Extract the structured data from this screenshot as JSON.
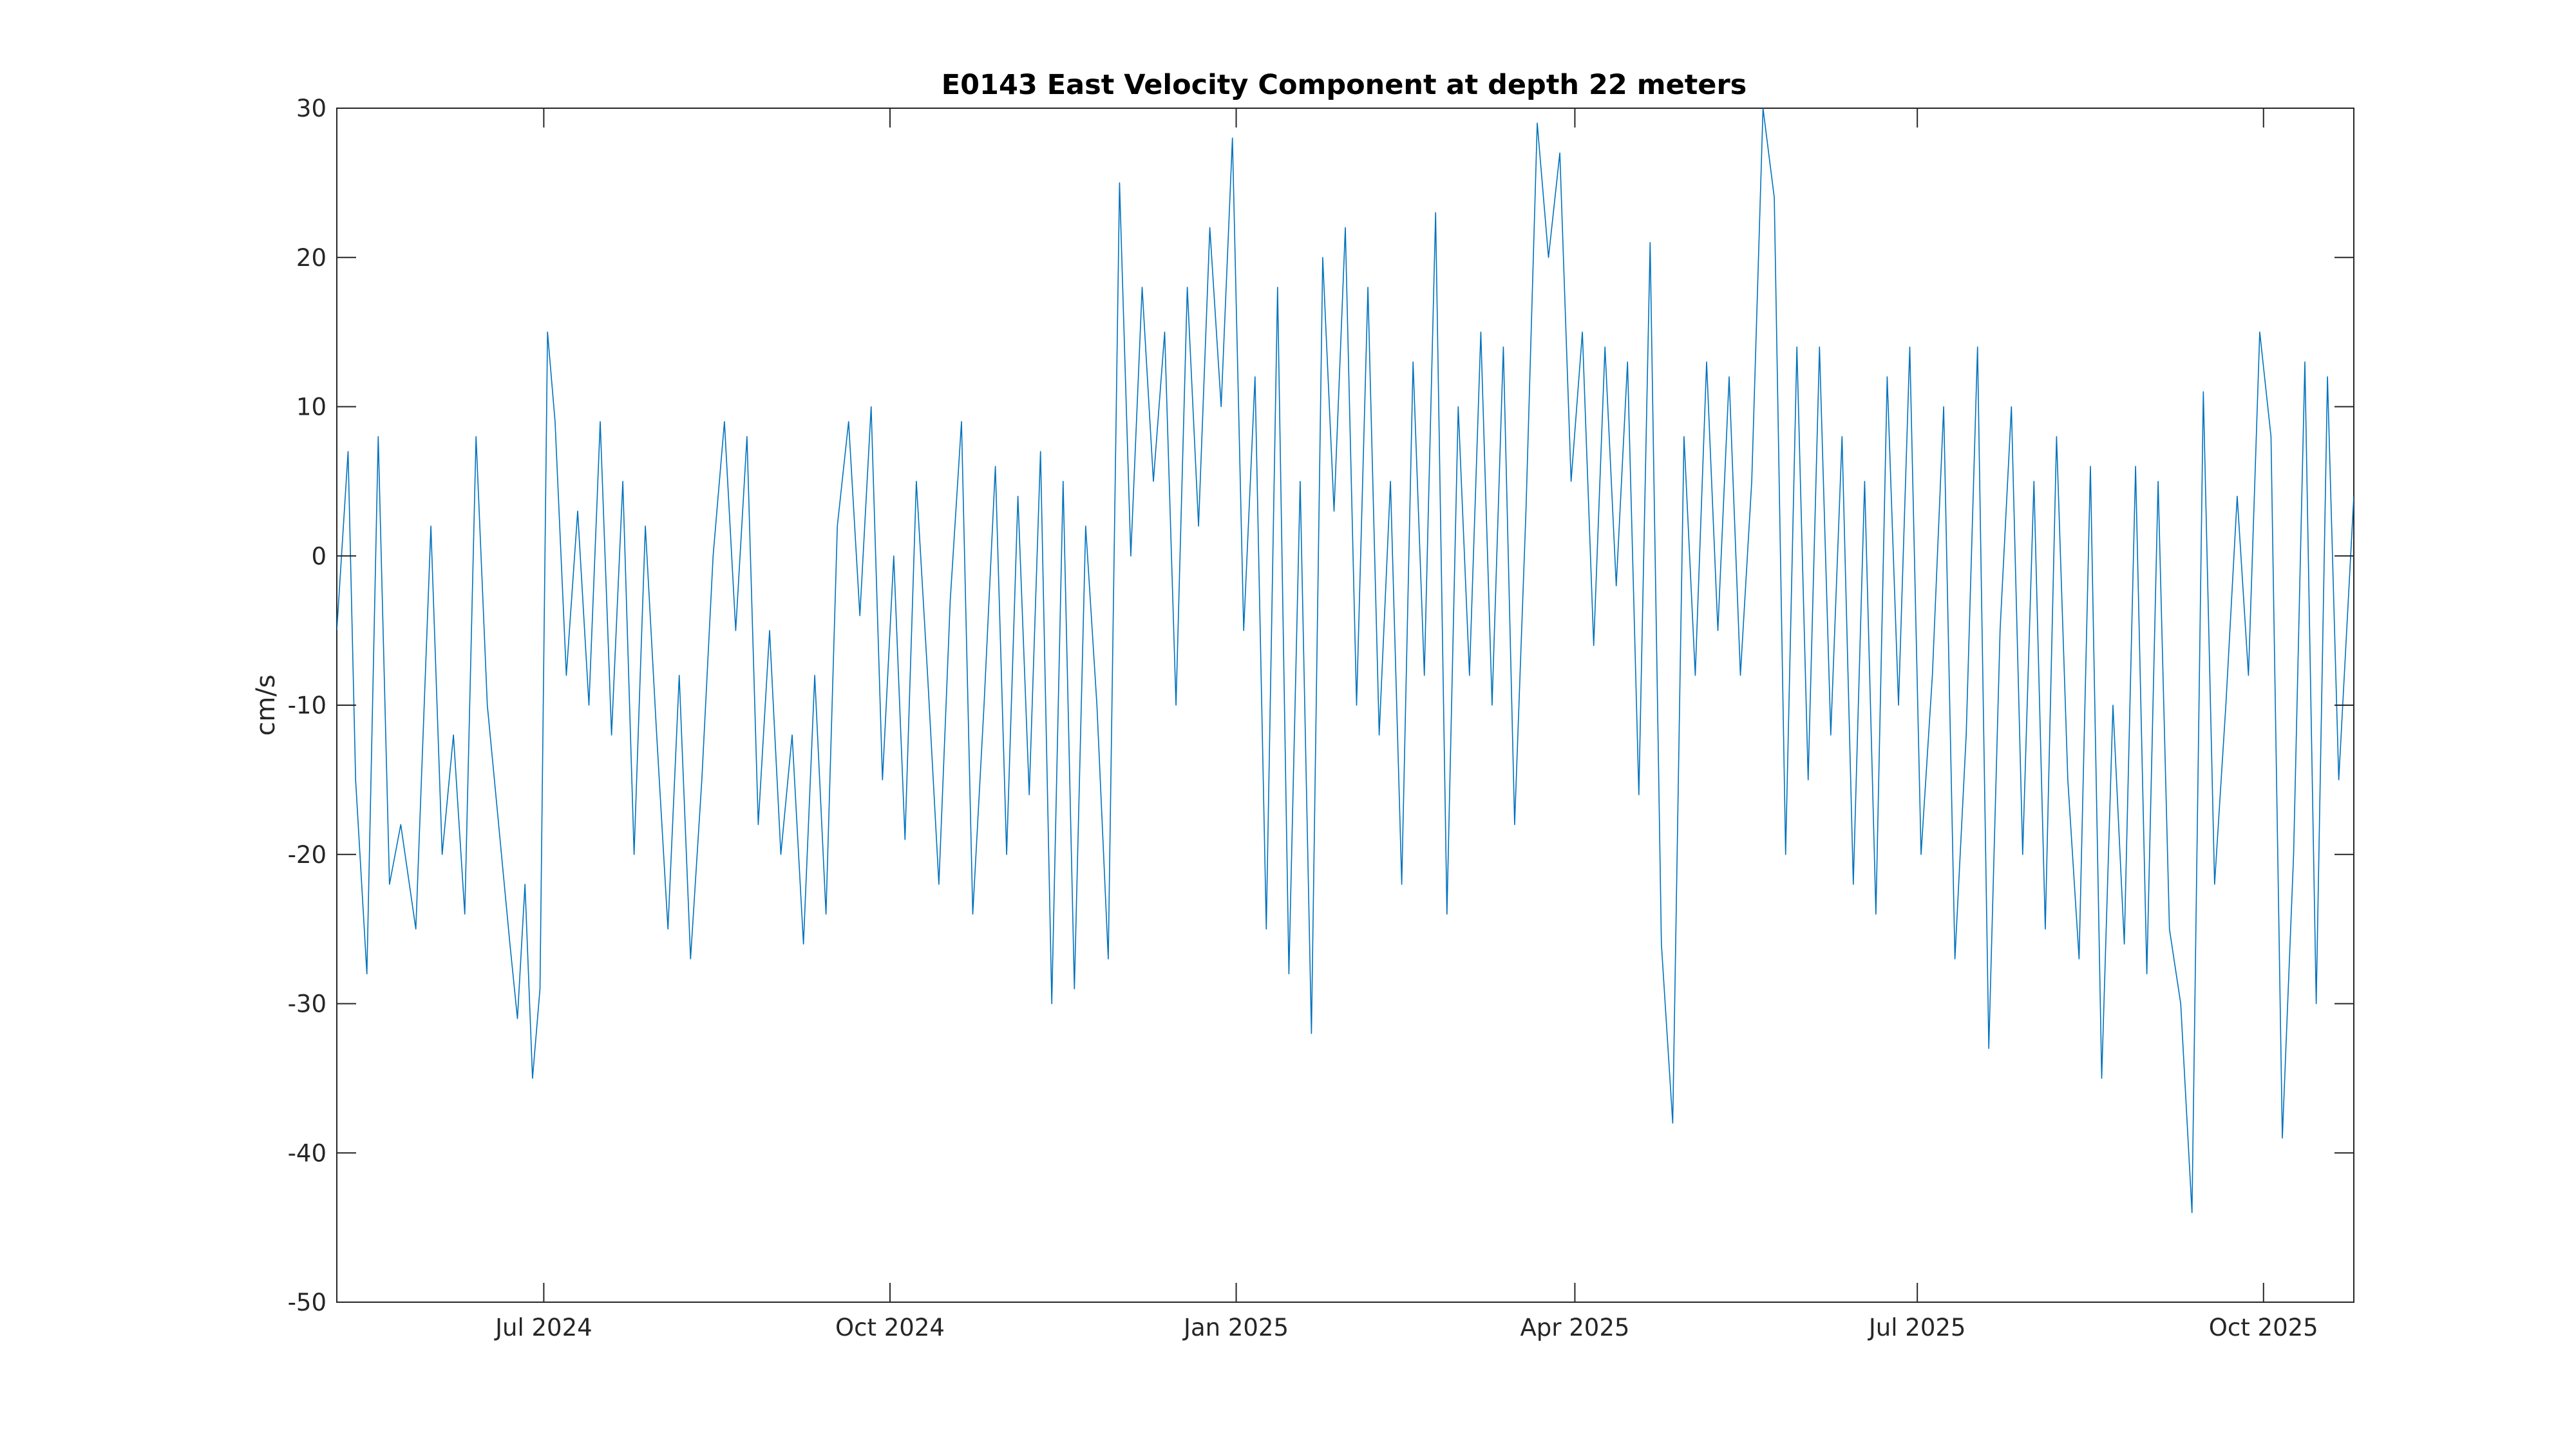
{
  "chart_data": {
    "type": "line",
    "title": "E0143 East Velocity Component at depth 22 meters",
    "xlabel": "",
    "ylabel": "cm/s",
    "xlim": [
      "2024-05-07",
      "2025-10-25"
    ],
    "ylim": [
      -50,
      30
    ],
    "yticks": [
      30,
      20,
      10,
      0,
      -10,
      -20,
      -30,
      -40,
      -50
    ],
    "xticks": [
      {
        "date": "2024-07-01",
        "label": "Jul 2024"
      },
      {
        "date": "2024-10-01",
        "label": "Oct 2024"
      },
      {
        "date": "2025-01-01",
        "label": "Jan 2025"
      },
      {
        "date": "2025-04-01",
        "label": "Apr 2025"
      },
      {
        "date": "2025-07-01",
        "label": "Jul 2025"
      },
      {
        "date": "2025-10-01",
        "label": "Oct 2025"
      }
    ],
    "grid": false,
    "legend": "none",
    "series": [
      {
        "color": "#0072bd",
        "points": [
          [
            "2024-05-07",
            -5
          ],
          [
            "2024-05-10",
            7
          ],
          [
            "2024-05-12",
            -15
          ],
          [
            "2024-05-15",
            -28
          ],
          [
            "2024-05-18",
            8
          ],
          [
            "2024-05-21",
            -22
          ],
          [
            "2024-05-24",
            -18
          ],
          [
            "2024-05-28",
            -25
          ],
          [
            "2024-06-01",
            2
          ],
          [
            "2024-06-04",
            -20
          ],
          [
            "2024-06-07",
            -12
          ],
          [
            "2024-06-10",
            -24
          ],
          [
            "2024-06-13",
            8
          ],
          [
            "2024-06-16",
            -10
          ],
          [
            "2024-06-19",
            -18
          ],
          [
            "2024-06-22",
            -26
          ],
          [
            "2024-06-24",
            -31
          ],
          [
            "2024-06-26",
            -22
          ],
          [
            "2024-06-28",
            -35
          ],
          [
            "2024-06-30",
            -29
          ],
          [
            "2024-07-02",
            15
          ],
          [
            "2024-07-04",
            9
          ],
          [
            "2024-07-07",
            -8
          ],
          [
            "2024-07-10",
            3
          ],
          [
            "2024-07-13",
            -10
          ],
          [
            "2024-07-16",
            9
          ],
          [
            "2024-07-19",
            -12
          ],
          [
            "2024-07-22",
            5
          ],
          [
            "2024-07-25",
            -20
          ],
          [
            "2024-07-28",
            2
          ],
          [
            "2024-07-31",
            -12
          ],
          [
            "2024-08-03",
            -25
          ],
          [
            "2024-08-06",
            -8
          ],
          [
            "2024-08-09",
            -27
          ],
          [
            "2024-08-12",
            -15
          ],
          [
            "2024-08-15",
            0
          ],
          [
            "2024-08-18",
            9
          ],
          [
            "2024-08-21",
            -5
          ],
          [
            "2024-08-24",
            8
          ],
          [
            "2024-08-27",
            -18
          ],
          [
            "2024-08-30",
            -5
          ],
          [
            "2024-09-02",
            -20
          ],
          [
            "2024-09-05",
            -12
          ],
          [
            "2024-09-08",
            -26
          ],
          [
            "2024-09-11",
            -8
          ],
          [
            "2024-09-14",
            -24
          ],
          [
            "2024-09-17",
            2
          ],
          [
            "2024-09-20",
            9
          ],
          [
            "2024-09-23",
            -4
          ],
          [
            "2024-09-26",
            10
          ],
          [
            "2024-09-29",
            -15
          ],
          [
            "2024-10-02",
            0
          ],
          [
            "2024-10-05",
            -19
          ],
          [
            "2024-10-08",
            5
          ],
          [
            "2024-10-11",
            -8
          ],
          [
            "2024-10-14",
            -22
          ],
          [
            "2024-10-17",
            -3
          ],
          [
            "2024-10-20",
            9
          ],
          [
            "2024-10-23",
            -24
          ],
          [
            "2024-10-26",
            -10
          ],
          [
            "2024-10-29",
            6
          ],
          [
            "2024-11-01",
            -20
          ],
          [
            "2024-11-04",
            4
          ],
          [
            "2024-11-07",
            -16
          ],
          [
            "2024-11-10",
            7
          ],
          [
            "2024-11-13",
            -30
          ],
          [
            "2024-11-16",
            5
          ],
          [
            "2024-11-19",
            -29
          ],
          [
            "2024-11-22",
            2
          ],
          [
            "2024-11-25",
            -10
          ],
          [
            "2024-11-28",
            -27
          ],
          [
            "2024-12-01",
            25
          ],
          [
            "2024-12-04",
            0
          ],
          [
            "2024-12-07",
            18
          ],
          [
            "2024-12-10",
            5
          ],
          [
            "2024-12-13",
            15
          ],
          [
            "2024-12-16",
            -10
          ],
          [
            "2024-12-19",
            18
          ],
          [
            "2024-12-22",
            2
          ],
          [
            "2024-12-25",
            22
          ],
          [
            "2024-12-28",
            10
          ],
          [
            "2024-12-31",
            28
          ],
          [
            "2025-01-03",
            -5
          ],
          [
            "2025-01-06",
            12
          ],
          [
            "2025-01-09",
            -25
          ],
          [
            "2025-01-12",
            18
          ],
          [
            "2025-01-15",
            -28
          ],
          [
            "2025-01-18",
            5
          ],
          [
            "2025-01-21",
            -32
          ],
          [
            "2025-01-24",
            20
          ],
          [
            "2025-01-27",
            3
          ],
          [
            "2025-01-30",
            22
          ],
          [
            "2025-02-02",
            -10
          ],
          [
            "2025-02-05",
            18
          ],
          [
            "2025-02-08",
            -12
          ],
          [
            "2025-02-11",
            5
          ],
          [
            "2025-02-14",
            -22
          ],
          [
            "2025-02-17",
            13
          ],
          [
            "2025-02-20",
            -8
          ],
          [
            "2025-02-23",
            23
          ],
          [
            "2025-02-26",
            -24
          ],
          [
            "2025-03-01",
            10
          ],
          [
            "2025-03-04",
            -8
          ],
          [
            "2025-03-07",
            15
          ],
          [
            "2025-03-10",
            -10
          ],
          [
            "2025-03-13",
            14
          ],
          [
            "2025-03-16",
            -18
          ],
          [
            "2025-03-19",
            3
          ],
          [
            "2025-03-22",
            29
          ],
          [
            "2025-03-25",
            20
          ],
          [
            "2025-03-28",
            27
          ],
          [
            "2025-03-31",
            5
          ],
          [
            "2025-04-03",
            15
          ],
          [
            "2025-04-06",
            -6
          ],
          [
            "2025-04-09",
            14
          ],
          [
            "2025-04-12",
            -2
          ],
          [
            "2025-04-15",
            13
          ],
          [
            "2025-04-18",
            -16
          ],
          [
            "2025-04-21",
            21
          ],
          [
            "2025-04-24",
            -26
          ],
          [
            "2025-04-27",
            -38
          ],
          [
            "2025-04-30",
            8
          ],
          [
            "2025-05-03",
            -8
          ],
          [
            "2025-05-06",
            13
          ],
          [
            "2025-05-09",
            -5
          ],
          [
            "2025-05-12",
            12
          ],
          [
            "2025-05-15",
            -8
          ],
          [
            "2025-05-18",
            5
          ],
          [
            "2025-05-21",
            30
          ],
          [
            "2025-05-24",
            24
          ],
          [
            "2025-05-27",
            -20
          ],
          [
            "2025-05-30",
            14
          ],
          [
            "2025-06-02",
            -15
          ],
          [
            "2025-06-05",
            14
          ],
          [
            "2025-06-08",
            -12
          ],
          [
            "2025-06-11",
            8
          ],
          [
            "2025-06-14",
            -22
          ],
          [
            "2025-06-17",
            5
          ],
          [
            "2025-06-20",
            -24
          ],
          [
            "2025-06-23",
            12
          ],
          [
            "2025-06-26",
            -10
          ],
          [
            "2025-06-29",
            14
          ],
          [
            "2025-07-02",
            -20
          ],
          [
            "2025-07-05",
            -8
          ],
          [
            "2025-07-08",
            10
          ],
          [
            "2025-07-11",
            -27
          ],
          [
            "2025-07-14",
            -12
          ],
          [
            "2025-07-17",
            14
          ],
          [
            "2025-07-20",
            -33
          ],
          [
            "2025-07-23",
            -5
          ],
          [
            "2025-07-26",
            10
          ],
          [
            "2025-07-29",
            -20
          ],
          [
            "2025-08-01",
            5
          ],
          [
            "2025-08-04",
            -25
          ],
          [
            "2025-08-07",
            8
          ],
          [
            "2025-08-10",
            -15
          ],
          [
            "2025-08-13",
            -27
          ],
          [
            "2025-08-16",
            6
          ],
          [
            "2025-08-19",
            -35
          ],
          [
            "2025-08-22",
            -10
          ],
          [
            "2025-08-25",
            -26
          ],
          [
            "2025-08-28",
            6
          ],
          [
            "2025-08-31",
            -28
          ],
          [
            "2025-09-03",
            5
          ],
          [
            "2025-09-06",
            -25
          ],
          [
            "2025-09-09",
            -30
          ],
          [
            "2025-09-12",
            -44
          ],
          [
            "2025-09-15",
            11
          ],
          [
            "2025-09-18",
            -22
          ],
          [
            "2025-09-21",
            -10
          ],
          [
            "2025-09-24",
            4
          ],
          [
            "2025-09-27",
            -8
          ],
          [
            "2025-09-30",
            15
          ],
          [
            "2025-10-03",
            8
          ],
          [
            "2025-10-06",
            -39
          ],
          [
            "2025-10-09",
            -20
          ],
          [
            "2025-10-12",
            13
          ],
          [
            "2025-10-15",
            -30
          ],
          [
            "2025-10-18",
            12
          ],
          [
            "2025-10-21",
            -15
          ],
          [
            "2025-10-25",
            4
          ]
        ]
      }
    ]
  }
}
